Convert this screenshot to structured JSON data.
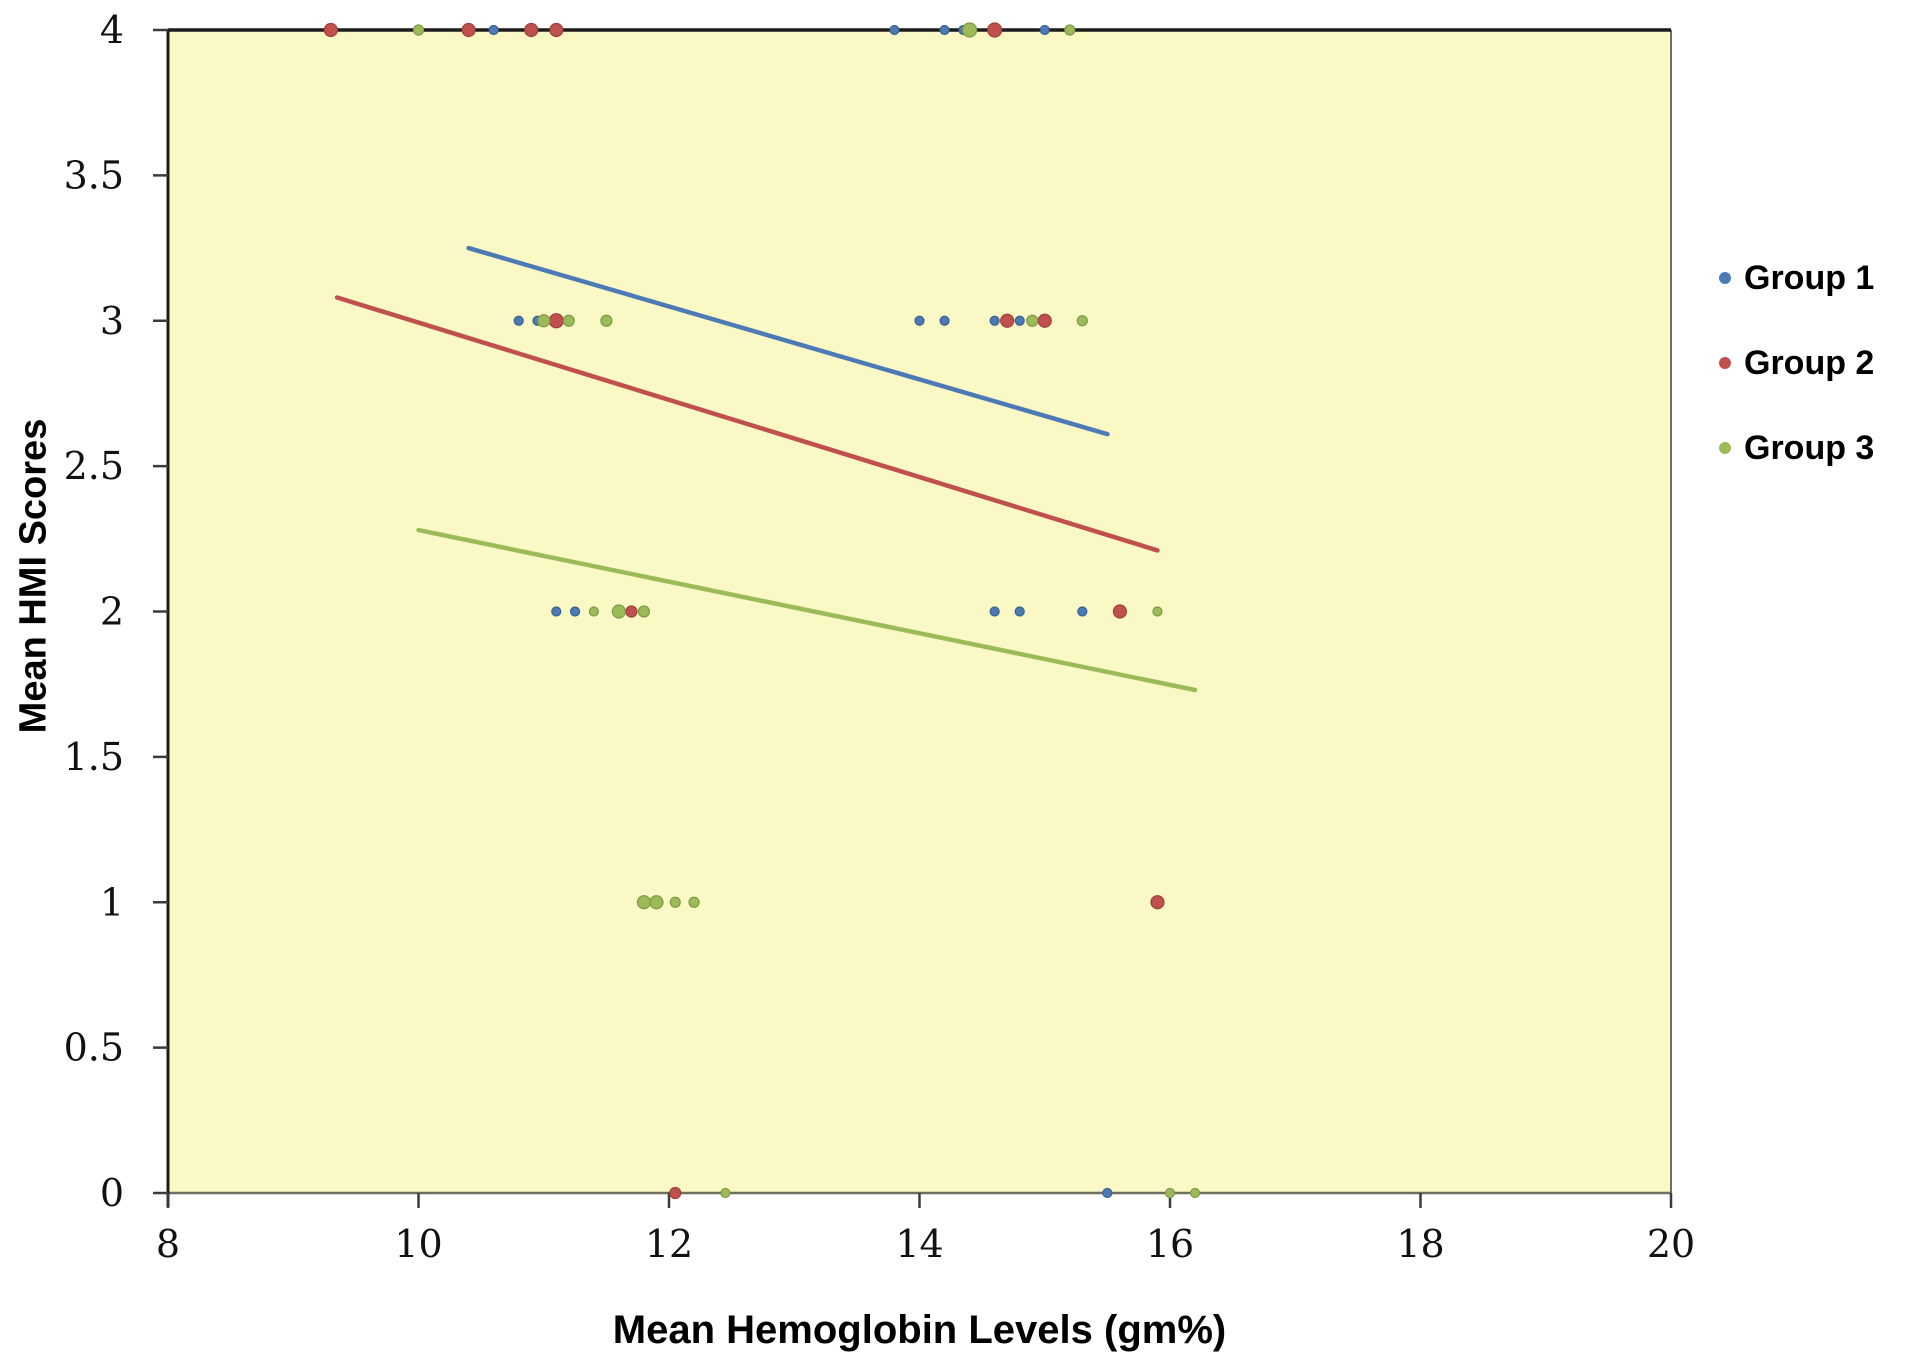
{
  "chart_data": {
    "type": "scatter",
    "title": "",
    "xlabel": "Mean Hemoglobin Levels (gm%)",
    "ylabel": "Mean HMI Scores",
    "xlim": [
      8,
      20
    ],
    "ylim": [
      0,
      4
    ],
    "xticks": [
      8,
      10,
      12,
      14,
      16,
      18,
      20
    ],
    "xtick_labels": [
      "8",
      "10",
      "12",
      "14",
      "16",
      "18",
      "20"
    ],
    "yticks": [
      0,
      0.5,
      1,
      1.5,
      2,
      2.5,
      3,
      3.5,
      4
    ],
    "ytick_labels": [
      "0",
      "0.5",
      "1",
      "1.5",
      "2",
      "2.5",
      "3",
      "3.5",
      "4"
    ],
    "grid": false,
    "legend_position": "right",
    "plot_background": "#FAF8C5",
    "series": [
      {
        "name": "Group 1",
        "color": "#4C7AB5",
        "edge_color": "#3A6191",
        "points": [
          [
            10.6,
            4,
            4.5
          ],
          [
            13.8,
            4,
            4.5
          ],
          [
            14.2,
            4,
            4.5
          ],
          [
            14.35,
            4,
            4.5
          ],
          [
            15.0,
            4,
            4.5
          ],
          [
            10.8,
            3,
            4.5
          ],
          [
            10.95,
            3,
            4.5
          ],
          [
            14.0,
            3,
            4.5
          ],
          [
            14.2,
            3,
            4.5
          ],
          [
            14.6,
            3,
            4.5
          ],
          [
            14.8,
            3,
            4.5
          ],
          [
            11.1,
            2,
            4.5
          ],
          [
            11.25,
            2,
            4.5
          ],
          [
            14.6,
            2,
            4.5
          ],
          [
            14.8,
            2,
            4.5
          ],
          [
            15.3,
            2,
            4.5
          ],
          [
            15.5,
            0,
            4.5
          ]
        ],
        "trendline": {
          "x": [
            10.4,
            15.5
          ],
          "y": [
            3.25,
            2.61
          ]
        }
      },
      {
        "name": "Group 2",
        "color": "#C0504D",
        "edge_color": "#9E3F3C",
        "points": [
          [
            9.3,
            4,
            6.5
          ],
          [
            10.4,
            4,
            6.5
          ],
          [
            10.9,
            4,
            6.5
          ],
          [
            11.1,
            4,
            6.5
          ],
          [
            14.6,
            4,
            7
          ],
          [
            11.1,
            3,
            7
          ],
          [
            14.7,
            3,
            6.5
          ],
          [
            15.0,
            3,
            6.5
          ],
          [
            11.7,
            2,
            5.5
          ],
          [
            15.6,
            2,
            6.5
          ],
          [
            15.9,
            1,
            6.5
          ],
          [
            12.05,
            0,
            5.5
          ]
        ],
        "trendline": {
          "x": [
            9.35,
            15.9
          ],
          "y": [
            3.08,
            2.21
          ]
        }
      },
      {
        "name": "Group 3",
        "color": "#9BBB59",
        "edge_color": "#7E9A47",
        "points": [
          [
            10.0,
            4,
            5
          ],
          [
            14.4,
            4,
            7
          ],
          [
            15.2,
            4,
            5
          ],
          [
            11.0,
            3,
            6
          ],
          [
            11.2,
            3,
            5.5
          ],
          [
            11.5,
            3,
            5.5
          ],
          [
            14.9,
            3,
            5.5
          ],
          [
            15.3,
            3,
            5
          ],
          [
            11.4,
            2,
            4.5
          ],
          [
            11.6,
            2,
            6.5
          ],
          [
            11.8,
            2,
            5.5
          ],
          [
            15.9,
            2,
            4.5
          ],
          [
            11.8,
            1,
            6.5
          ],
          [
            11.9,
            1,
            6.5
          ],
          [
            12.05,
            1,
            5
          ],
          [
            12.2,
            1,
            5
          ],
          [
            12.45,
            0,
            4.5
          ],
          [
            16.0,
            0,
            4.5
          ],
          [
            16.2,
            0,
            4.5
          ]
        ],
        "trendline": {
          "x": [
            10.0,
            16.2
          ],
          "y": [
            2.28,
            1.73
          ]
        }
      }
    ]
  }
}
